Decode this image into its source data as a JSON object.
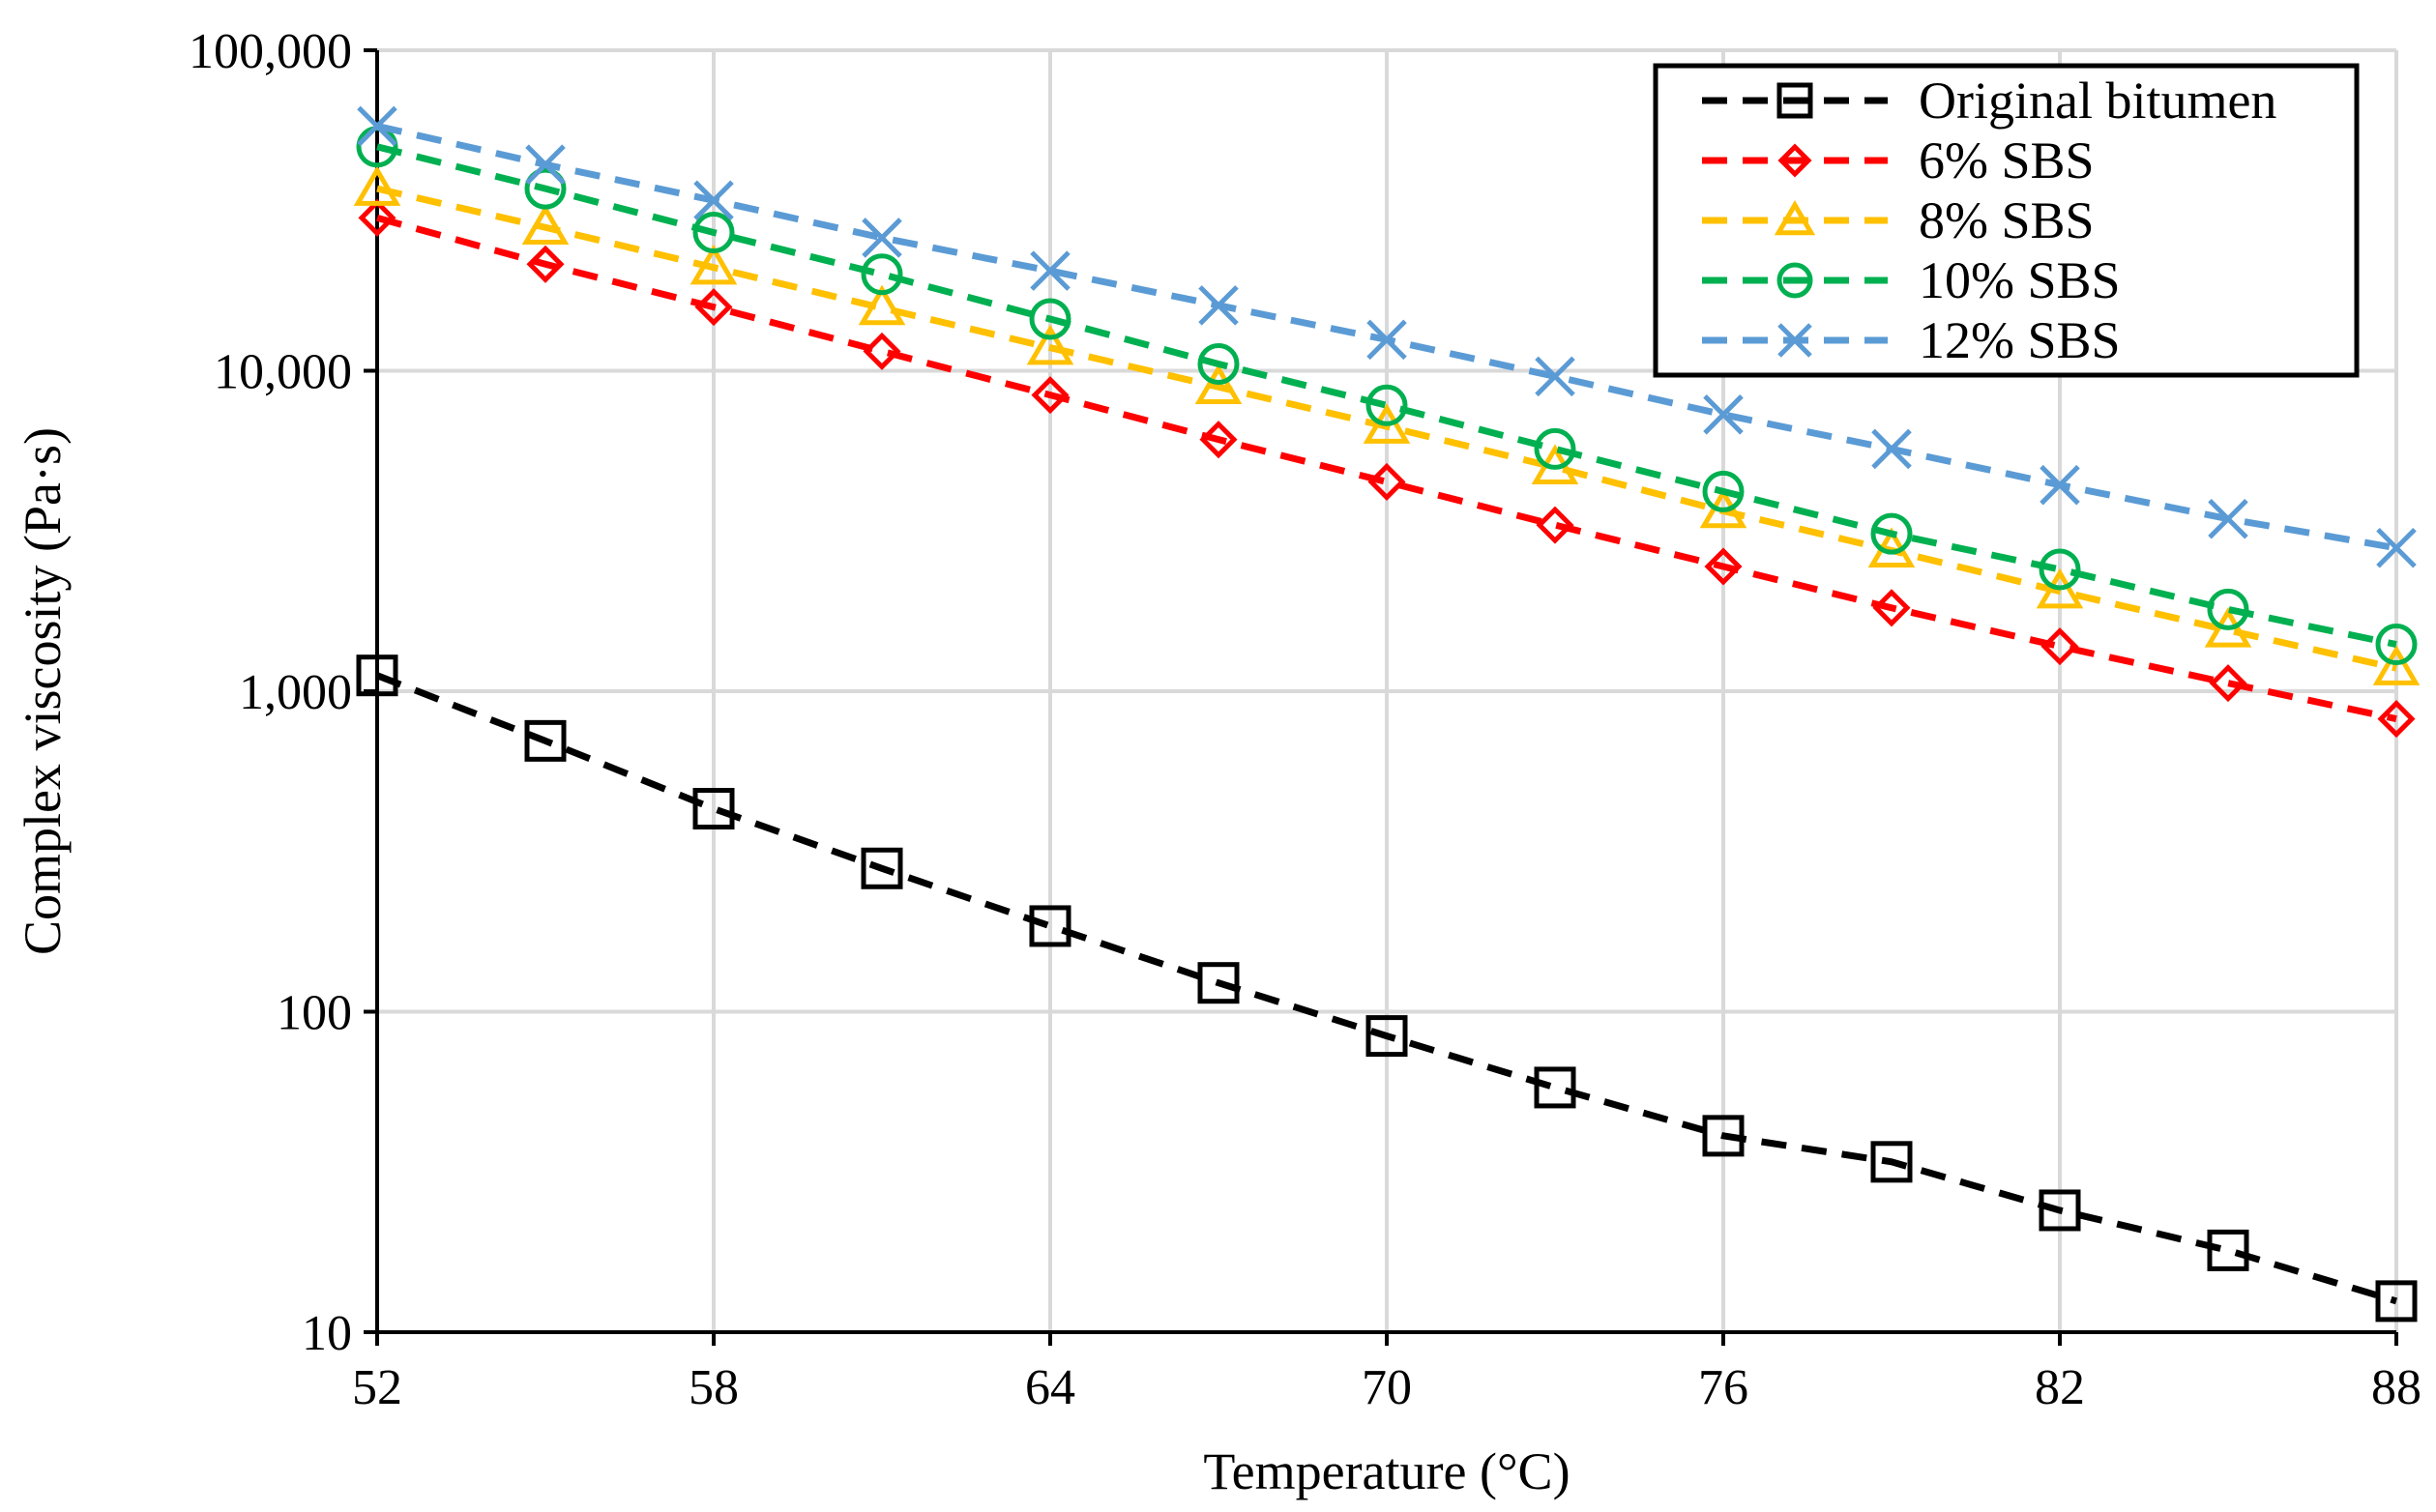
{
  "chart_data": {
    "type": "line",
    "title": "",
    "xlabel": "Temperature (°C)",
    "ylabel": "Complex viscosity (Pa·s)",
    "xlim": [
      52,
      88
    ],
    "ylim": [
      10,
      100000
    ],
    "yscale": "log",
    "grid": true,
    "legend_position": "top-right",
    "x_ticks": [
      "52",
      "58",
      "64",
      "70",
      "76",
      "82",
      "88"
    ],
    "x_tick_values": [
      52,
      58,
      64,
      70,
      76,
      82,
      88
    ],
    "y_ticks": [
      "10",
      "100",
      "1,000",
      "10,000",
      "100,000"
    ],
    "y_tick_values": [
      10,
      100,
      1000,
      10000,
      100000
    ],
    "x": [
      52,
      55,
      58,
      61,
      64,
      67,
      70,
      73,
      76,
      79,
      82,
      85,
      88
    ],
    "series": [
      {
        "name": "Original bitumen",
        "color": "#000000",
        "marker": "square",
        "values": [
          1120,
          700,
          430,
          280,
          185,
          123,
          84,
          58,
          41,
          34,
          24,
          18,
          12.5
        ]
      },
      {
        "name": "6% SBS",
        "color": "#FF0000",
        "marker": "diamond",
        "values": [
          30000,
          21500,
          15800,
          11500,
          8400,
          6100,
          4500,
          3300,
          2450,
          1820,
          1380,
          1060,
          820
        ]
      },
      {
        "name": "8% SBS",
        "color": "#FFC000",
        "marker": "triangle",
        "values": [
          37000,
          28000,
          21000,
          15700,
          11800,
          8900,
          6700,
          5000,
          3650,
          2750,
          2050,
          1550,
          1180
        ]
      },
      {
        "name": "10% SBS",
        "color": "#00B050",
        "marker": "circle",
        "values": [
          50000,
          37000,
          27000,
          20000,
          14500,
          10500,
          7800,
          5700,
          4200,
          3100,
          2400,
          1800,
          1400
        ]
      },
      {
        "name": "12% SBS",
        "color": "#5B9BD5",
        "marker": "x",
        "values": [
          58000,
          44000,
          34000,
          26000,
          20500,
          16000,
          12500,
          9600,
          7300,
          5700,
          4400,
          3450,
          2800
        ]
      }
    ]
  }
}
